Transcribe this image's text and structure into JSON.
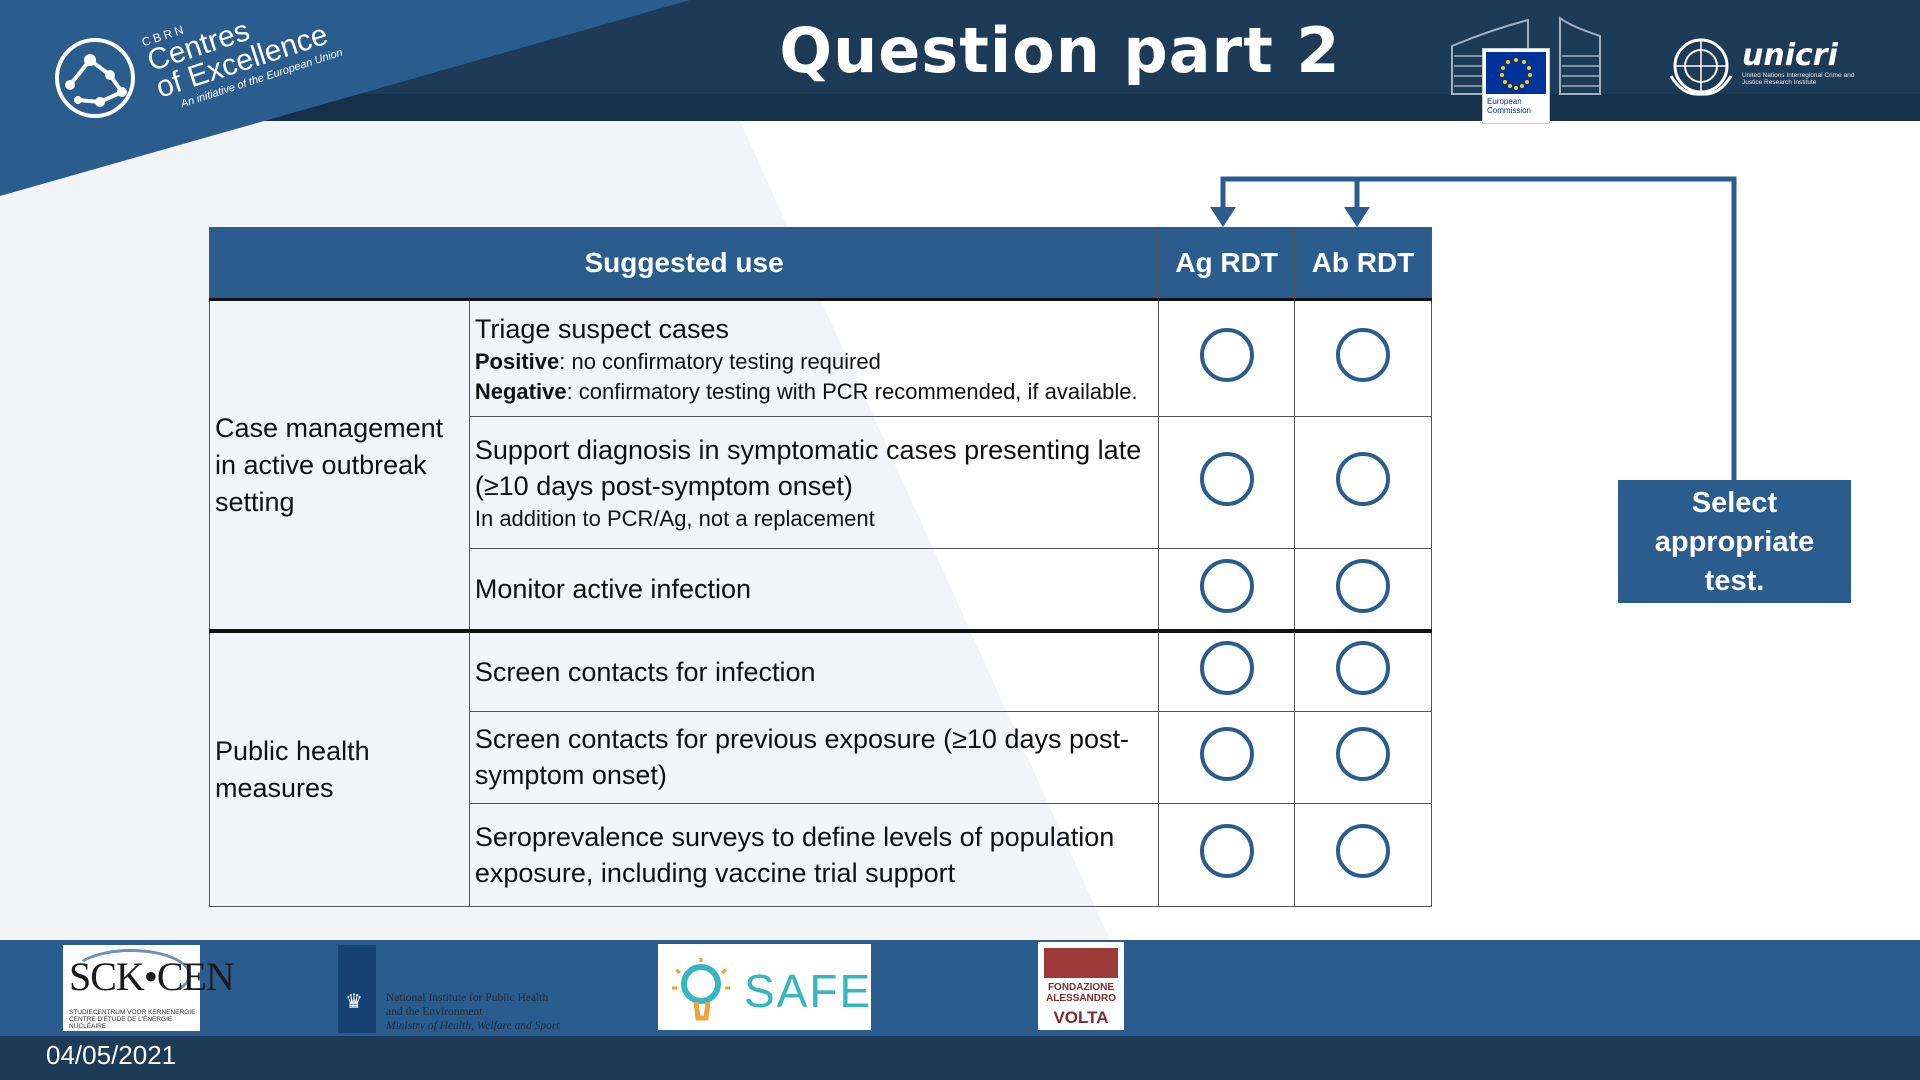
{
  "header": {
    "title": "Question part 2",
    "cbrn_small": "CBRN",
    "cbrn_line1": "Centres",
    "cbrn_line2": "of Excellence",
    "cbrn_tagline": "An initiative of the European Union",
    "ec_label_1": "European",
    "ec_label_2": "Commission",
    "unicri_name": "unicri",
    "unicri_sub": "United Nations Interregional Crime and Justice Research Institute"
  },
  "table": {
    "headers": {
      "use": "Suggested use",
      "ag": "Ag RDT",
      "ab": "Ab RDT"
    },
    "groups": [
      {
        "category": "Case management in active outbreak setting",
        "rows": [
          {
            "title": "Triage suspect cases",
            "positive_label": "Positive",
            "positive_text": ": no confirmatory testing required",
            "negative_label": "Negative",
            "negative_text": ": confirmatory testing with PCR recommended, if available."
          },
          {
            "title": "Support diagnosis in symptomatic cases presenting late (≥10 days post-symptom onset)",
            "note": "In addition to PCR/Ag, not a replacement"
          },
          {
            "title": "Monitor active infection"
          }
        ]
      },
      {
        "category": "Public health measures",
        "rows": [
          {
            "title": "Screen contacts for infection"
          },
          {
            "title": "Screen contacts for previous exposure (≥10 days post-symptom onset)"
          },
          {
            "title": "Seroprevalence surveys to define levels of population exposure, including vaccine trial support"
          }
        ]
      }
    ]
  },
  "callout": {
    "text_line1": "Select",
    "text_line2": "appropriate",
    "text_line3": "test."
  },
  "footer": {
    "date": "04/05/2021",
    "sck_name": "SCK•CEN",
    "sck_sub": "STUDIECENTRUM VOOR KERNENERGIE CENTRE D'ÉTUDE DE L'ÉNERGIE NUCLÉAIRE",
    "rivm_line1": "National Institute for Public Health",
    "rivm_line2": "and the Environment",
    "rivm_line3": "Ministry of Health, Welfare and Sport",
    "safe_name": "SAFE",
    "volta_line1": "FONDAZIONE",
    "volta_line2": "ALESSANDRO",
    "volta_line3": "VOLTA"
  },
  "colors": {
    "header_bg": "#1d3a56",
    "accent_blue": "#2a5d8e",
    "circle_stroke": "#2a5d8e"
  }
}
